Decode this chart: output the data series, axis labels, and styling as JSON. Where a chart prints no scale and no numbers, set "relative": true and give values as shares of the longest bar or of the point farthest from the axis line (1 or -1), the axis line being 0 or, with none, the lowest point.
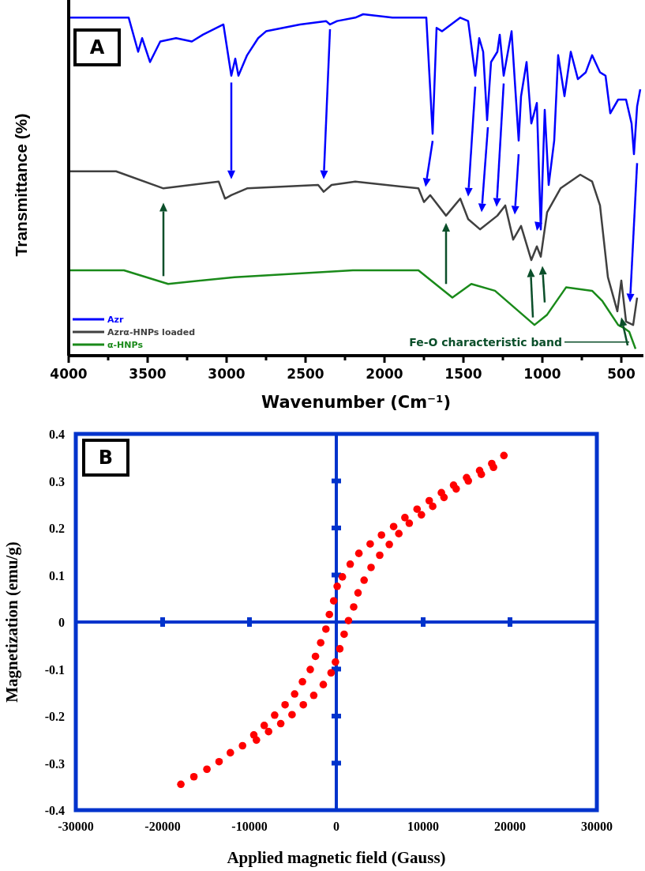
{
  "chart_data": [
    {
      "type": "line",
      "relative": true,
      "xlabel": "Wavenumber (Cm⁻¹)",
      "ylabel": "Transmittance (%)",
      "xlim": [
        4000,
        360
      ],
      "xticks": [
        4000,
        {
          "value": 3750,
          "label": null
        },
        3500,
        {
          "value": 3250,
          "label": null
        },
        3000,
        {
          "value": 2750,
          "label": null
        },
        2500,
        {
          "value": 2250,
          "label": null
        },
        2000,
        {
          "value": 1750,
          "label": null
        },
        1500,
        {
          "value": 1250,
          "label": null
        },
        1000,
        {
          "value": 750,
          "label": null
        },
        500
      ],
      "legend": "bottom left",
      "annotations": [
        "A",
        {
          "text": "Fe-O characteristic band",
          "x": 450,
          "y": 0.04
        }
      ],
      "series": [
        {
          "name": "Azr",
          "color": "#0000ff",
          "x": [
            4000,
            3620,
            3560,
            3535,
            3485,
            3420,
            3320,
            3220,
            3150,
            3020,
            2970,
            2945,
            2925,
            2870,
            2800,
            2750,
            2535,
            2370,
            2345,
            2300,
            2185,
            2135,
            1950,
            1735,
            1695,
            1670,
            1635,
            1520,
            1470,
            1425,
            1400,
            1375,
            1350,
            1325,
            1285,
            1270,
            1245,
            1195,
            1150,
            1135,
            1100,
            1070,
            1035,
            1010,
            985,
            960,
            925,
            900,
            860,
            820,
            775,
            725,
            685,
            635,
            600,
            570,
            520,
            470,
            435,
            420,
            400,
            380
          ],
          "values": [
            0.99,
            0.99,
            0.89,
            0.93,
            0.86,
            0.92,
            0.93,
            0.92,
            0.94,
            0.97,
            0.82,
            0.87,
            0.82,
            0.88,
            0.93,
            0.95,
            0.97,
            0.98,
            0.97,
            0.98,
            0.99,
            1.0,
            0.99,
            0.99,
            0.65,
            0.96,
            0.95,
            0.99,
            0.98,
            0.82,
            0.93,
            0.89,
            0.69,
            0.86,
            0.89,
            0.94,
            0.82,
            0.95,
            0.63,
            0.76,
            0.86,
            0.68,
            0.74,
            0.37,
            0.72,
            0.5,
            0.63,
            0.88,
            0.76,
            0.89,
            0.81,
            0.83,
            0.88,
            0.83,
            0.82,
            0.71,
            0.75,
            0.75,
            0.68,
            0.59,
            0.73,
            0.78
          ]
        },
        {
          "name": "Azrα-HNPs loaded",
          "color": "#404040",
          "x": [
            4000,
            3700,
            3400,
            3050,
            3010,
            2970,
            2870,
            2420,
            2385,
            2335,
            2185,
            1785,
            1750,
            1710,
            1610,
            1520,
            1470,
            1395,
            1285,
            1235,
            1185,
            1135,
            1070,
            1035,
            1010,
            970,
            885,
            760,
            685,
            635,
            585,
            525,
            500,
            470,
            425,
            400
          ],
          "values": [
            0.54,
            0.54,
            0.49,
            0.51,
            0.46,
            0.47,
            0.49,
            0.5,
            0.48,
            0.5,
            0.51,
            0.49,
            0.45,
            0.47,
            0.41,
            0.46,
            0.4,
            0.37,
            0.41,
            0.44,
            0.34,
            0.38,
            0.28,
            0.32,
            0.29,
            0.42,
            0.49,
            0.53,
            0.51,
            0.44,
            0.23,
            0.13,
            0.22,
            0.1,
            0.09,
            0.17
          ]
        },
        {
          "name": "α-HNPs",
          "color": "#1a8a1a",
          "x": [
            4000,
            3650,
            3370,
            2950,
            2200,
            1785,
            1570,
            1450,
            1300,
            1050,
            970,
            850,
            685,
            620,
            520,
            480,
            450,
            410
          ],
          "values": [
            0.25,
            0.25,
            0.21,
            0.23,
            0.25,
            0.25,
            0.17,
            0.21,
            0.19,
            0.09,
            0.12,
            0.2,
            0.19,
            0.16,
            0.09,
            0.08,
            0.07,
            0.02
          ]
        }
      ]
    },
    {
      "type": "scatter",
      "xlabel": "Applied magnetic field (Gauss)",
      "ylabel": "Magnetization (emu/g)",
      "xlim": [
        -30000,
        30000
      ],
      "xticks": [
        -30000,
        -20000,
        -10000,
        0,
        10000,
        20000,
        30000
      ],
      "ylim": [
        -0.4,
        0.4
      ],
      "yticks": [
        -0.4,
        -0.3,
        -0.2,
        -0.1,
        0,
        0.1,
        0.2,
        0.3,
        0.4
      ],
      "marker": "circle",
      "annotations": [
        "B"
      ],
      "series": [
        {
          "color": "#ff0000",
          "x": [
            19300,
            17900,
            18100,
            16500,
            16700,
            15000,
            15200,
            13500,
            13800,
            12100,
            12400,
            10700,
            11100,
            9300,
            9800,
            7900,
            8400,
            6600,
            7200,
            5200,
            6100,
            3900,
            5000,
            2600,
            4000,
            1600,
            3200,
            700,
            2500,
            100,
            2000,
            -300,
            1400,
            -800,
            900,
            -1200,
            400,
            -1800,
            -100,
            -2400,
            -600,
            -3000,
            -1500,
            -3900,
            -2600,
            -4800,
            -3800,
            -5900,
            -5100,
            -7100,
            -6400,
            -8300,
            -7800,
            -9500,
            -9200,
            -10800,
            -12200,
            -13500,
            -14900,
            -16400,
            -17900
          ],
          "values": [
            0.354,
            0.337,
            0.329,
            0.322,
            0.314,
            0.307,
            0.3,
            0.291,
            0.283,
            0.275,
            0.265,
            0.258,
            0.246,
            0.24,
            0.228,
            0.222,
            0.21,
            0.203,
            0.188,
            0.185,
            0.165,
            0.166,
            0.142,
            0.146,
            0.116,
            0.123,
            0.089,
            0.096,
            0.062,
            0.076,
            0.032,
            0.045,
            0.003,
            0.016,
            -0.026,
            -0.015,
            -0.057,
            -0.044,
            -0.085,
            -0.073,
            -0.108,
            -0.101,
            -0.133,
            -0.127,
            -0.156,
            -0.153,
            -0.176,
            -0.176,
            -0.197,
            -0.198,
            -0.216,
            -0.22,
            -0.233,
            -0.24,
            -0.251,
            -0.263,
            -0.278,
            -0.297,
            -0.313,
            -0.329,
            -0.345
          ]
        }
      ]
    }
  ]
}
